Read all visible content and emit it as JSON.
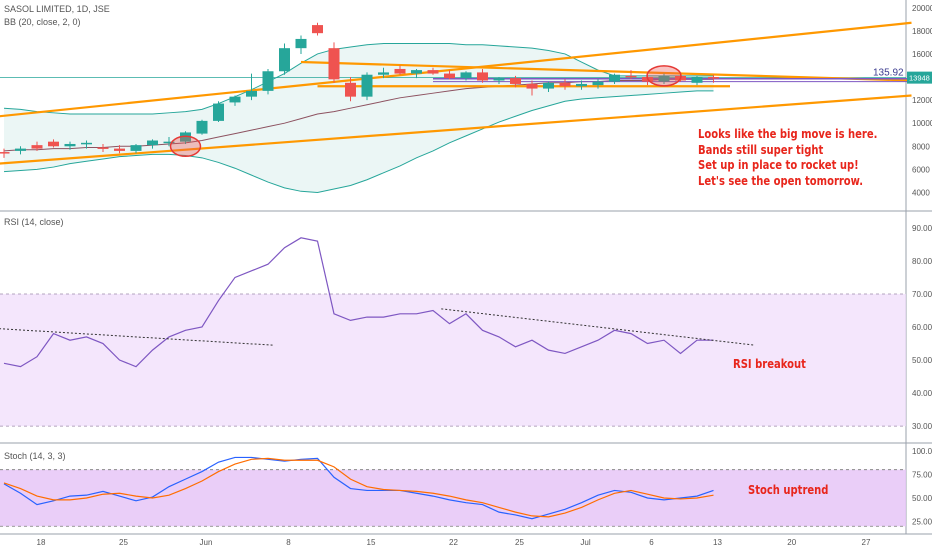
{
  "chart_data": [
    {
      "type": "candlestick",
      "title": "SASOL LIMITED, 1D, JSE",
      "indicator": "BB (20, close, 2, 0)",
      "y_ticks": [
        4000,
        6000,
        8000,
        10000,
        12000,
        14000,
        16000,
        18000,
        20000
      ],
      "ylim": [
        3000,
        20500
      ],
      "x_tick_labels": [
        "18",
        "25",
        "Jun",
        "8",
        "15",
        "22",
        "25",
        "Jul",
        "6",
        "13",
        "20",
        "27"
      ],
      "price_label": "135.92",
      "last_value": "13948",
      "candles": [
        {
          "o": 7500,
          "h": 7800,
          "l": 7000,
          "c": 7400
        },
        {
          "o": 7600,
          "h": 8000,
          "l": 7300,
          "c": 7800
        },
        {
          "o": 8100,
          "h": 8400,
          "l": 7600,
          "c": 7800
        },
        {
          "o": 8400,
          "h": 8600,
          "l": 7900,
          "c": 8000
        },
        {
          "o": 8000,
          "h": 8400,
          "l": 7700,
          "c": 8200
        },
        {
          "o": 8200,
          "h": 8500,
          "l": 7800,
          "c": 8300
        },
        {
          "o": 7900,
          "h": 8200,
          "l": 7500,
          "c": 7800
        },
        {
          "o": 7800,
          "h": 8100,
          "l": 7400,
          "c": 7600
        },
        {
          "o": 7600,
          "h": 8200,
          "l": 7400,
          "c": 8100
        },
        {
          "o": 8100,
          "h": 8600,
          "l": 7800,
          "c": 8500
        },
        {
          "o": 8400,
          "h": 8800,
          "l": 8000,
          "c": 8400
        },
        {
          "o": 8400,
          "h": 9300,
          "l": 8200,
          "c": 9200
        },
        {
          "o": 9100,
          "h": 10300,
          "l": 9000,
          "c": 10200
        },
        {
          "o": 10200,
          "h": 11900,
          "l": 10100,
          "c": 11700
        },
        {
          "o": 11800,
          "h": 12400,
          "l": 11500,
          "c": 12300
        },
        {
          "o": 12300,
          "h": 14300,
          "l": 12000,
          "c": 12800
        },
        {
          "o": 12800,
          "h": 14700,
          "l": 12500,
          "c": 14500
        },
        {
          "o": 14500,
          "h": 16900,
          "l": 14200,
          "c": 16500
        },
        {
          "o": 16500,
          "h": 17600,
          "l": 16000,
          "c": 17300
        },
        {
          "o": 18500,
          "h": 18700,
          "l": 17600,
          "c": 17800
        },
        {
          "o": 16500,
          "h": 17000,
          "l": 13500,
          "c": 13800
        },
        {
          "o": 13500,
          "h": 14000,
          "l": 11900,
          "c": 12300
        },
        {
          "o": 12300,
          "h": 14400,
          "l": 12000,
          "c": 14200
        },
        {
          "o": 14200,
          "h": 14800,
          "l": 13900,
          "c": 14400
        },
        {
          "o": 14700,
          "h": 15000,
          "l": 14200,
          "c": 14300
        },
        {
          "o": 14300,
          "h": 14700,
          "l": 13900,
          "c": 14600
        },
        {
          "o": 14600,
          "h": 14800,
          "l": 14200,
          "c": 14300
        },
        {
          "o": 14300,
          "h": 14600,
          "l": 13800,
          "c": 13900
        },
        {
          "o": 13900,
          "h": 14500,
          "l": 13700,
          "c": 14400
        },
        {
          "o": 14400,
          "h": 14700,
          "l": 13500,
          "c": 13700
        },
        {
          "o": 13700,
          "h": 14000,
          "l": 13400,
          "c": 13900
        },
        {
          "o": 13900,
          "h": 14100,
          "l": 13100,
          "c": 13400
        },
        {
          "o": 13400,
          "h": 13700,
          "l": 12400,
          "c": 13000
        },
        {
          "o": 13000,
          "h": 13600,
          "l": 12700,
          "c": 13500
        },
        {
          "o": 13500,
          "h": 13800,
          "l": 12900,
          "c": 13200
        },
        {
          "o": 13200,
          "h": 13700,
          "l": 12900,
          "c": 13400
        },
        {
          "o": 13300,
          "h": 13800,
          "l": 13000,
          "c": 13600
        },
        {
          "o": 13600,
          "h": 14300,
          "l": 13400,
          "c": 14200
        },
        {
          "o": 14100,
          "h": 14600,
          "l": 13800,
          "c": 14000
        },
        {
          "o": 14000,
          "h": 14200,
          "l": 13300,
          "c": 13600
        },
        {
          "o": 13600,
          "h": 14300,
          "l": 13400,
          "c": 14100
        },
        {
          "o": 14100,
          "h": 14400,
          "l": 13600,
          "c": 13700
        },
        {
          "o": 13500,
          "h": 14100,
          "l": 13300,
          "c": 14000
        },
        {
          "o": 14000,
          "h": 14200,
          "l": 13500,
          "c": 13900
        }
      ],
      "bb_upper": [
        11300,
        11200,
        11000,
        10900,
        10800,
        10800,
        10800,
        10800,
        10800,
        10800,
        10900,
        11000,
        11200,
        11700,
        12300,
        12900,
        13600,
        14300,
        15200,
        16000,
        16400,
        16600,
        16800,
        16900,
        16900,
        16900,
        16900,
        16900,
        16800,
        16800,
        16700,
        16600,
        16500,
        16300,
        16000,
        15300,
        14600,
        14100,
        14100,
        14100,
        14100,
        14100,
        14100,
        14100
      ],
      "bb_basis": [
        7600,
        7700,
        7700,
        7800,
        7800,
        7900,
        7900,
        8000,
        8000,
        8100,
        8200,
        8300,
        8500,
        8800,
        9100,
        9400,
        9700,
        10000,
        10400,
        10800,
        11000,
        11300,
        11600,
        11900,
        12200,
        12400,
        12600,
        12800,
        13000,
        13100,
        13200,
        13300,
        13400,
        13500,
        13500,
        13600,
        13600,
        13700,
        13700,
        13700,
        13800,
        13800,
        13800,
        13800
      ],
      "bb_lower": [
        5800,
        5900,
        6000,
        6200,
        6500,
        6700,
        6900,
        7100,
        7200,
        7300,
        7300,
        7200,
        7000,
        6600,
        6100,
        5500,
        4900,
        4400,
        4100,
        4000,
        4300,
        4600,
        5100,
        5700,
        6300,
        7000,
        7600,
        8300,
        8900,
        9500,
        10100,
        10600,
        11100,
        11500,
        11900,
        12100,
        12200,
        12300,
        12400,
        12500,
        12600,
        12700,
        12800,
        12800
      ]
    },
    {
      "type": "line",
      "title": "RSI (14, close)",
      "y_ticks": [
        30,
        40,
        50,
        60,
        70,
        80,
        90
      ],
      "ylim": [
        27,
        93
      ],
      "band": [
        30,
        70
      ],
      "values": [
        49,
        48,
        51,
        58,
        56,
        57,
        55,
        50,
        48,
        53,
        57,
        59,
        60,
        68,
        75,
        77,
        79,
        84,
        87,
        86,
        64,
        62,
        63,
        63,
        64,
        64,
        65,
        61,
        64,
        59,
        57,
        54,
        56,
        53,
        52,
        54,
        56,
        59,
        58,
        55,
        56,
        52,
        56,
        56
      ],
      "annotation": "RSI breakout"
    },
    {
      "type": "line",
      "title": "Stoch (14, 3, 3)",
      "y_ticks": [
        25,
        50,
        75,
        100
      ],
      "ylim": [
        15,
        103
      ],
      "band": [
        20,
        80
      ],
      "series": [
        {
          "color": "#2962ff",
          "values": [
            65,
            55,
            43,
            47,
            52,
            53,
            57,
            52,
            47,
            51,
            62,
            70,
            78,
            88,
            93,
            93,
            91,
            89,
            91,
            92,
            72,
            60,
            58,
            58,
            58,
            55,
            52,
            48,
            45,
            43,
            35,
            32,
            28,
            33,
            38,
            45,
            53,
            58,
            56,
            50,
            48,
            50,
            52,
            58
          ]
        },
        {
          "color": "#ff6d00",
          "values": [
            66,
            60,
            52,
            48,
            48,
            50,
            54,
            55,
            52,
            50,
            53,
            60,
            68,
            78,
            86,
            91,
            92,
            90,
            90,
            90,
            83,
            70,
            62,
            59,
            58,
            57,
            55,
            52,
            48,
            45,
            40,
            35,
            31,
            30,
            34,
            40,
            48,
            55,
            58,
            54,
            50,
            49,
            50,
            53
          ]
        }
      ],
      "annotation": "Stoch uptrend"
    }
  ],
  "annotations": {
    "note_lines": [
      "Looks like the big move is here.",
      "Bands still super tight",
      "Set up in place to rocket up!",
      "Let's see the open tomorrow."
    ]
  },
  "colors": {
    "up": "#26a69a",
    "down": "#ef5350",
    "trendline": "#ff9800",
    "bb_line": "#26a69a",
    "bb_fill": "#e6f4f3",
    "basis": "#8d5260",
    "rsi_line": "#7e57c2",
    "band_fill": "#efdcfb",
    "note": "#e8261c"
  }
}
